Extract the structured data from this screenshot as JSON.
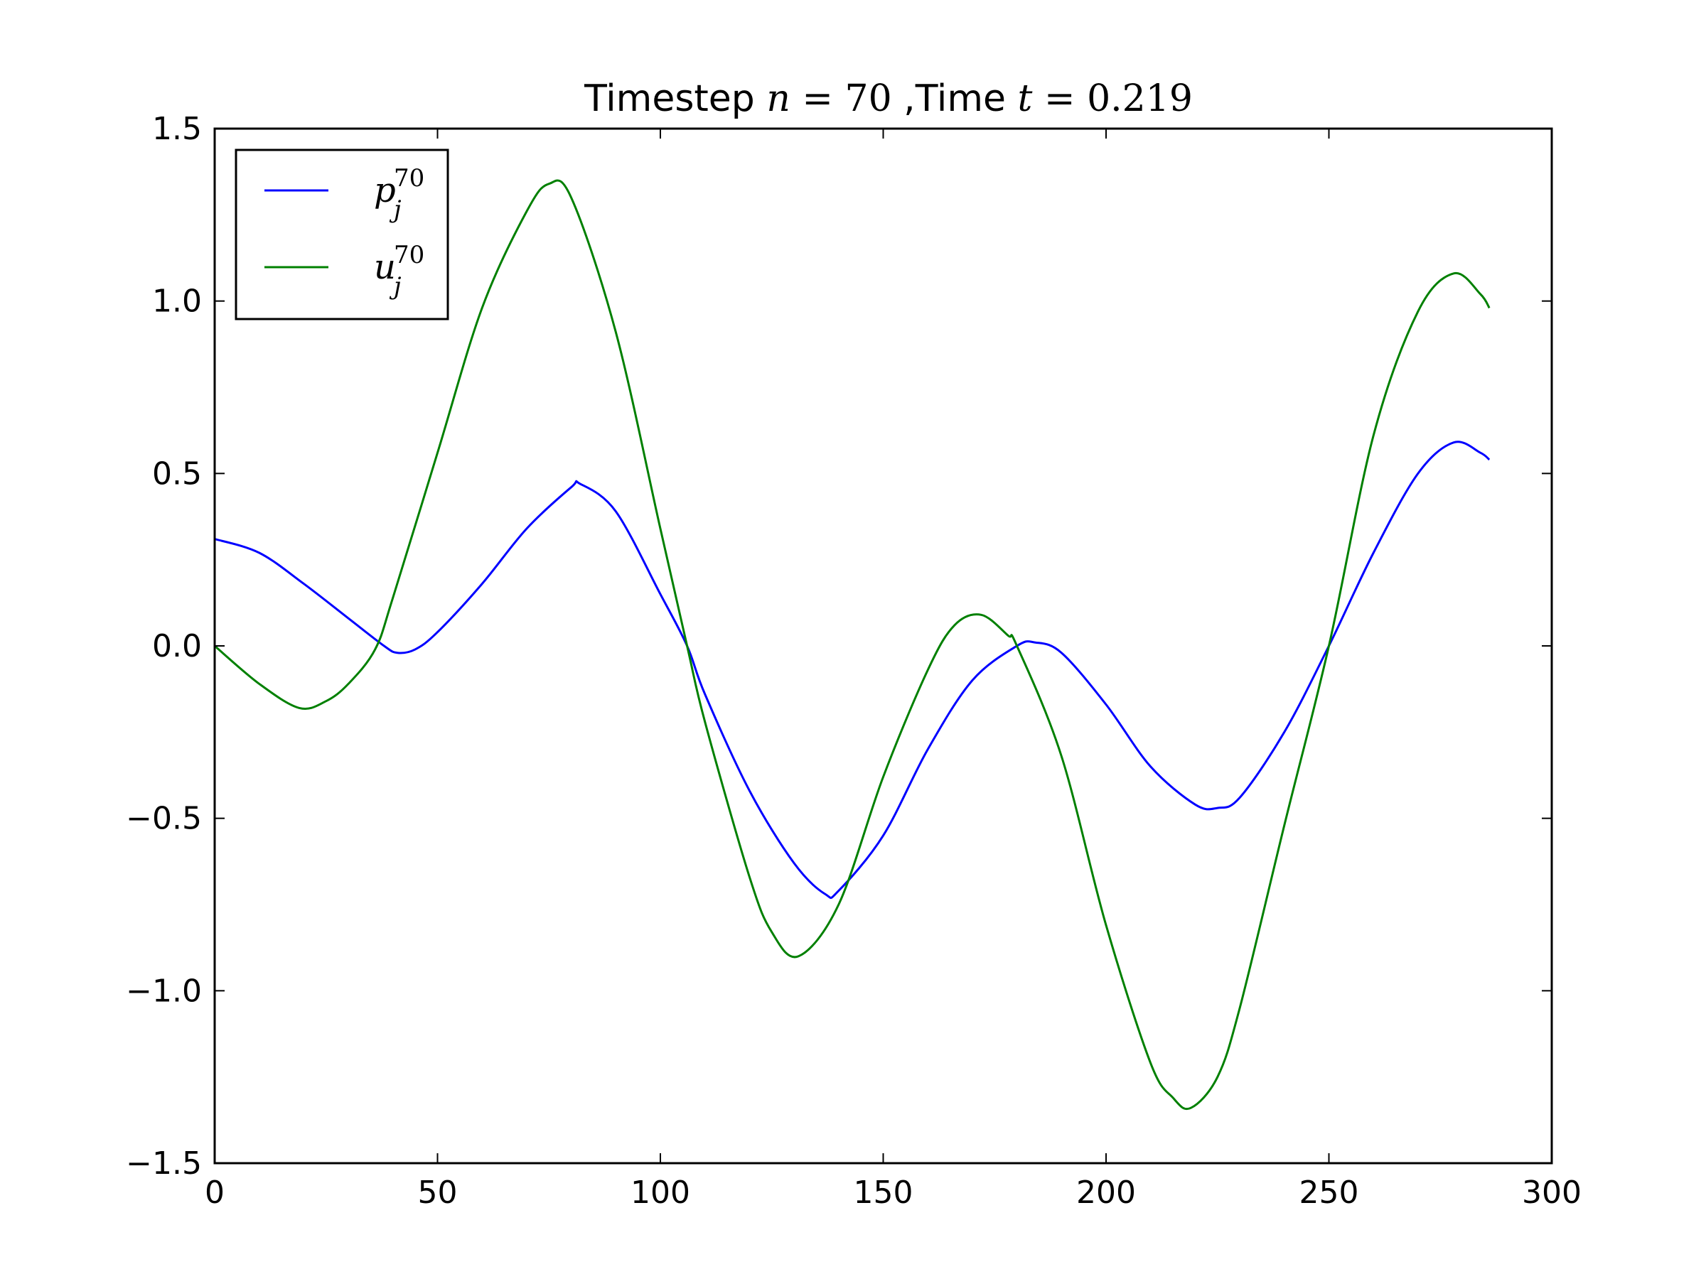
{
  "chart_data": {
    "type": "line",
    "title": {
      "prefix": "Timestep ",
      "n_symbol": "n",
      "equals1": " = ",
      "n_value": "70",
      "middle": " ,Time ",
      "t_symbol": "t",
      "equals2": " = ",
      "t_value": "0.219"
    },
    "xlabel": "",
    "ylabel": "",
    "xlim": [
      0,
      300
    ],
    "ylim": [
      -1.5,
      1.5
    ],
    "xticks": [
      0,
      50,
      100,
      150,
      200,
      250,
      300
    ],
    "xtick_labels": [
      "0",
      "50",
      "100",
      "150",
      "200",
      "250",
      "300"
    ],
    "yticks": [
      -1.5,
      -1.0,
      -0.5,
      0.0,
      0.5,
      1.0,
      1.5
    ],
    "ytick_labels": [
      "−1.5",
      "−1.0",
      "−0.5",
      "0.0",
      "0.5",
      "1.0",
      "1.5"
    ],
    "grid": false,
    "legend_position": "upper-left",
    "colors": {
      "p": "#0000ff",
      "u": "#008000"
    },
    "series": [
      {
        "name": "p",
        "symbol": "p",
        "subscript": "j",
        "superscript": "70",
        "color": "#0000ff",
        "x": [
          0,
          10,
          20,
          30,
          38,
          41,
          45,
          50,
          60,
          70,
          80,
          82,
          90,
          100,
          106,
          110,
          120,
          130,
          137,
          140,
          150,
          160,
          170,
          180,
          184,
          190,
          200,
          210,
          220,
          225,
          230,
          240,
          250,
          260,
          270,
          278,
          284,
          286
        ],
        "y": [
          0.31,
          0.27,
          0.18,
          0.08,
          0.0,
          -0.02,
          -0.01,
          0.04,
          0.18,
          0.34,
          0.46,
          0.47,
          0.39,
          0.15,
          0.0,
          -0.14,
          -0.42,
          -0.63,
          -0.72,
          -0.71,
          -0.55,
          -0.3,
          -0.1,
          0.0,
          0.01,
          -0.02,
          -0.17,
          -0.35,
          -0.46,
          -0.47,
          -0.44,
          -0.25,
          0.0,
          0.27,
          0.5,
          0.59,
          0.56,
          0.54
        ]
      },
      {
        "name": "u",
        "symbol": "u",
        "subscript": "j",
        "superscript": "70",
        "color": "#008000",
        "x": [
          0,
          10,
          19,
          25,
          30,
          36,
          40,
          50,
          60,
          70,
          75,
          80,
          90,
          100,
          106,
          110,
          120,
          125,
          131,
          140,
          150,
          160,
          166,
          172,
          178,
          180,
          190,
          200,
          210,
          215,
          219,
          225,
          230,
          240,
          250,
          260,
          270,
          278,
          284,
          286
        ],
        "y": [
          0.0,
          -0.11,
          -0.18,
          -0.16,
          -0.11,
          -0.01,
          0.14,
          0.56,
          0.98,
          1.26,
          1.34,
          1.3,
          0.91,
          0.34,
          0.0,
          -0.22,
          -0.67,
          -0.83,
          -0.9,
          -0.75,
          -0.38,
          -0.07,
          0.06,
          0.09,
          0.03,
          0.0,
          -0.32,
          -0.81,
          -1.21,
          -1.31,
          -1.34,
          -1.25,
          -1.05,
          -0.52,
          0.0,
          0.61,
          0.97,
          1.08,
          1.02,
          0.98
        ]
      }
    ]
  }
}
